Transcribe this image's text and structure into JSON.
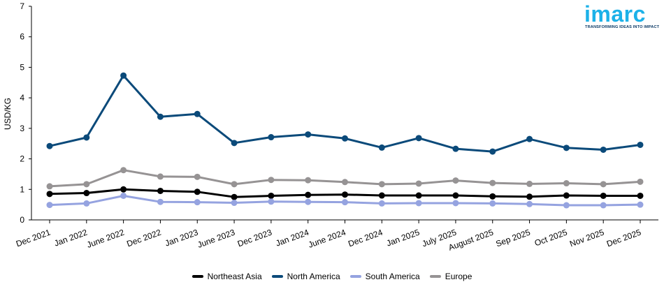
{
  "logo": {
    "word": "imarc",
    "tagline": "TRANSFORMING IDEAS INTO IMPACT"
  },
  "chart_data": {
    "type": "line",
    "ylabel": "USD/KG",
    "xlabel": "",
    "title": "",
    "ylim": [
      0,
      7
    ],
    "yticks": [
      0,
      1,
      2,
      3,
      4,
      5,
      6,
      7
    ],
    "grid": false,
    "legend_position": "bottom",
    "categories": [
      "Dec 2021",
      "Jan 2022",
      "June 2022",
      "Dec 2022",
      "Jan 2023",
      "June 2023",
      "Dec 2023",
      "Jan 2024",
      "June 2024",
      "Dec 2024",
      "Jan 2025",
      "July 2025",
      "August 2025",
      "Sep 2025",
      "Oct 2025",
      "Nov 2025",
      "Dec 2025"
    ],
    "series": [
      {
        "name": "Northeast Asia",
        "color": "#000000",
        "values": [
          0.85,
          0.88,
          1.0,
          0.95,
          0.92,
          0.75,
          0.79,
          0.82,
          0.83,
          0.8,
          0.8,
          0.8,
          0.77,
          0.76,
          0.8,
          0.79,
          0.79
        ]
      },
      {
        "name": "North America",
        "color": "#0b4a7a",
        "values": [
          2.42,
          2.7,
          4.73,
          3.38,
          3.47,
          2.52,
          2.71,
          2.8,
          2.67,
          2.37,
          2.68,
          2.33,
          2.24,
          2.65,
          2.36,
          2.3,
          2.46
        ]
      },
      {
        "name": "South America",
        "color": "#95a3e0",
        "values": [
          0.49,
          0.54,
          0.79,
          0.59,
          0.58,
          0.56,
          0.6,
          0.59,
          0.58,
          0.54,
          0.55,
          0.55,
          0.54,
          0.52,
          0.48,
          0.48,
          0.5
        ]
      },
      {
        "name": "Europe",
        "color": "#969394",
        "values": [
          1.1,
          1.17,
          1.63,
          1.42,
          1.41,
          1.17,
          1.31,
          1.3,
          1.24,
          1.17,
          1.19,
          1.29,
          1.21,
          1.18,
          1.2,
          1.17,
          1.25
        ]
      }
    ]
  }
}
